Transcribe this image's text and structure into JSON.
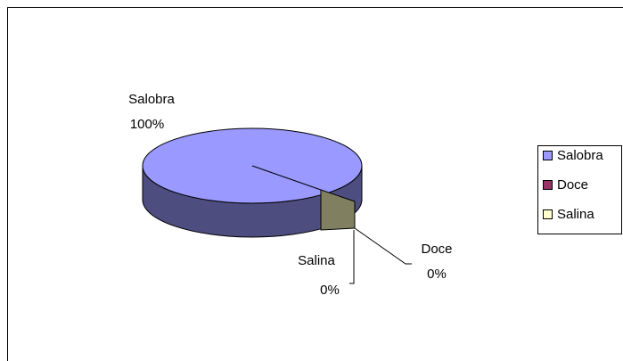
{
  "chart_data": {
    "type": "pie",
    "categories": [
      "Salobra",
      "Doce",
      "Salina"
    ],
    "values": [
      100,
      0,
      0
    ],
    "value_labels": [
      "100%",
      "0%",
      "0%"
    ],
    "colors": [
      "#9999ff",
      "#993366",
      "#ffffcc"
    ],
    "legend": "right"
  }
}
